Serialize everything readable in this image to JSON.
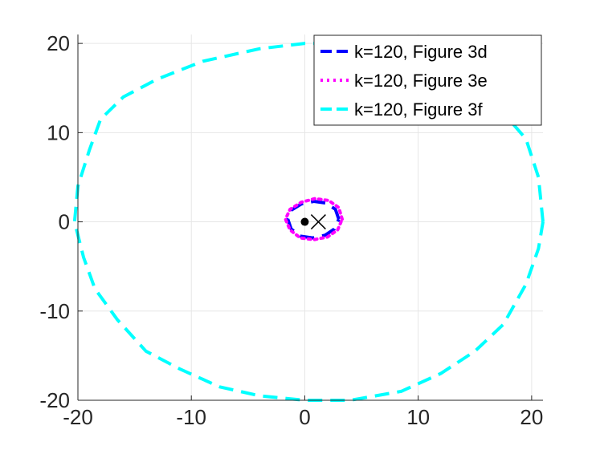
{
  "chart_data": {
    "type": "line",
    "title": "",
    "xlabel": "",
    "ylabel": "",
    "xlim": [
      -20,
      21
    ],
    "ylim": [
      -20,
      21
    ],
    "x_ticks": [
      -20,
      -10,
      0,
      10,
      20
    ],
    "y_ticks": [
      -20,
      -10,
      0,
      10,
      20
    ],
    "x_tick_labels": [
      "-20",
      "-10",
      "0",
      "10",
      "20"
    ],
    "y_tick_labels": [
      "-20",
      "-10",
      "0",
      "10",
      "20"
    ],
    "grid": true,
    "legend_position": "top-right",
    "series": [
      {
        "name": "k=120, Figure 3d",
        "color": "#0000ff",
        "line_style": "dashed",
        "points": [
          [
            3.0,
            0.3
          ],
          [
            2.7,
            1.4
          ],
          [
            1.9,
            2.1
          ],
          [
            0.8,
            2.3
          ],
          [
            -0.3,
            2.0
          ],
          [
            -1.2,
            1.3
          ],
          [
            -1.5,
            0.3
          ],
          [
            -1.2,
            -0.8
          ],
          [
            -0.4,
            -1.6
          ],
          [
            0.7,
            -1.8
          ],
          [
            1.8,
            -1.5
          ],
          [
            2.6,
            -0.8
          ],
          [
            3.0,
            0.3
          ]
        ]
      },
      {
        "name": "k=120, Figure 3e",
        "color": "#ff00ff",
        "line_style": "dotted",
        "points": [
          [
            3.3,
            0.3
          ],
          [
            3.0,
            1.6
          ],
          [
            2.1,
            2.4
          ],
          [
            0.9,
            2.6
          ],
          [
            -0.3,
            2.2
          ],
          [
            -1.3,
            1.4
          ],
          [
            -1.7,
            0.3
          ],
          [
            -1.3,
            -0.9
          ],
          [
            -0.4,
            -1.8
          ],
          [
            0.8,
            -2.0
          ],
          [
            2.0,
            -1.7
          ],
          [
            2.9,
            -0.9
          ],
          [
            3.3,
            0.3
          ]
        ]
      },
      {
        "name": "k=120, Figure 3f",
        "color": "#00ffff",
        "line_style": "dashed",
        "points": [
          [
            21,
            0
          ],
          [
            20.6,
            5
          ],
          [
            19.5,
            9.3
          ],
          [
            18,
            11.5
          ],
          [
            15.5,
            14.5
          ],
          [
            12,
            17.5
          ],
          [
            8.5,
            19.3
          ],
          [
            4,
            20
          ],
          [
            0,
            20
          ],
          [
            -4,
            19.4
          ],
          [
            -9,
            18
          ],
          [
            -13,
            16
          ],
          [
            -16,
            14
          ],
          [
            -18,
            11.5
          ],
          [
            -19,
            8
          ],
          [
            -20,
            4
          ],
          [
            -20.3,
            0
          ],
          [
            -19.5,
            -4
          ],
          [
            -18.5,
            -7.5
          ],
          [
            -16.5,
            -11
          ],
          [
            -14,
            -14.5
          ],
          [
            -11,
            -16.5
          ],
          [
            -7.5,
            -18.5
          ],
          [
            -4,
            -19.5
          ],
          [
            0,
            -20
          ],
          [
            4,
            -20
          ],
          [
            8.5,
            -19
          ],
          [
            12,
            -17
          ],
          [
            15,
            -14.5
          ],
          [
            17.5,
            -11.5
          ],
          [
            19.5,
            -7
          ],
          [
            20.6,
            -3
          ],
          [
            21,
            0
          ]
        ]
      }
    ],
    "markers": [
      {
        "type": "dot",
        "x": 0,
        "y": 0,
        "color": "#000000"
      },
      {
        "type": "x",
        "x": 1.2,
        "y": 0,
        "color": "#000000"
      }
    ]
  }
}
